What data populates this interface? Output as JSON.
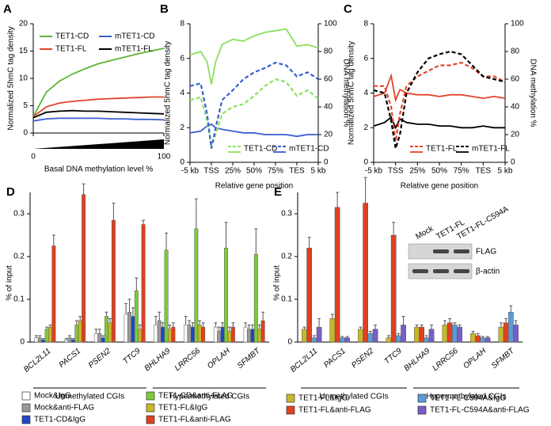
{
  "chart_data": [
    {
      "type": "line",
      "panel": "A",
      "xlabel": "Basal DNA methylation level %",
      "ylabel": "Normalized 5hmC tag density",
      "x": [
        0,
        10,
        20,
        30,
        40,
        50,
        60,
        70,
        80,
        90,
        100
      ],
      "xlim": [
        0,
        100
      ],
      "xticks": [
        0,
        100
      ],
      "ylim": [
        0,
        20
      ],
      "yticks": [
        0,
        5,
        10,
        15,
        20
      ],
      "series": [
        {
          "name": "TET1-CD",
          "color": "#5db535",
          "values": [
            3,
            7.5,
            9.5,
            10.8,
            11.8,
            12.7,
            13.3,
            13.9,
            14.5,
            15,
            15.5
          ]
        },
        {
          "name": "mTET1-CD",
          "color": "#3a5fd0",
          "values": [
            2.2,
            2.6,
            2.7,
            2.7,
            2.7,
            2.7,
            2.6,
            2.6,
            2.5,
            2.5,
            2.4
          ]
        },
        {
          "name": "TET1-FL",
          "color": "#e2442c",
          "values": [
            3,
            4.8,
            5.5,
            5.8,
            6,
            6.2,
            6.3,
            6.4,
            6.5,
            6.6,
            6.6
          ]
        },
        {
          "name": "mTET1-FL",
          "color": "#000000",
          "values": [
            2.8,
            3.8,
            4,
            4.1,
            4,
            4,
            3.9,
            3.8,
            3.7,
            3.6,
            3.5
          ]
        }
      ]
    },
    {
      "type": "line",
      "panel": "B",
      "xlabel": "Relative gene position",
      "ylabel": "Normalized 5hmC tag density",
      "y2label": "DNA methylation %",
      "x": [
        0,
        0.5,
        0.8,
        1,
        1.2,
        1.5,
        2,
        2.5,
        3,
        3.5,
        4,
        4.5,
        5,
        5.5,
        6
      ],
      "xlim": [
        0,
        6
      ],
      "xticks": [
        {
          "value": 0,
          "label": "-5 kb"
        },
        {
          "value": 1,
          "label": "TSS"
        },
        {
          "value": 2,
          "label": "25%"
        },
        {
          "value": 3,
          "label": "50%"
        },
        {
          "value": 4,
          "label": "75%"
        },
        {
          "value": 5,
          "label": "TES"
        },
        {
          "value": 6,
          "label": "5 kb"
        }
      ],
      "ylim": [
        0,
        8
      ],
      "yticks": [
        0,
        2,
        4,
        6,
        8
      ],
      "y2lim": [
        0,
        100
      ],
      "y2ticks": [
        0,
        20,
        40,
        60,
        80,
        100
      ],
      "series": [
        {
          "name": "TET1-CD",
          "color": "#8ae060",
          "values": [
            6.2,
            6.4,
            5.8,
            4.5,
            5.8,
            6.8,
            7.1,
            7,
            7.3,
            7.5,
            7.6,
            7.7,
            6.7,
            6.8,
            6.6
          ]
        },
        {
          "name": "mTET1-CD",
          "color": "#3a5fd0",
          "values": [
            1.7,
            1.8,
            2.1,
            2.2,
            2,
            1.9,
            1.8,
            1.7,
            1.7,
            1.6,
            1.6,
            1.6,
            1.5,
            1.6,
            1.6
          ]
        },
        {
          "color": "#8ae060",
          "dashed": true,
          "axis": "y2",
          "values": [
            45,
            47,
            30,
            12,
            20,
            35,
            40,
            42,
            48,
            55,
            60,
            58,
            48,
            52,
            46
          ]
        },
        {
          "color": "#3a5fd0",
          "dashed": true,
          "axis": "y2",
          "values": [
            55,
            57,
            35,
            10,
            25,
            45,
            52,
            60,
            65,
            68,
            72,
            70,
            62,
            65,
            60
          ]
        }
      ]
    },
    {
      "type": "line",
      "panel": "C",
      "xlabel": "Relative gene position",
      "ylabel": "Normalized 5hmC tag density",
      "y2label": "DNA methylation %",
      "x": [
        0,
        0.5,
        0.8,
        1,
        1.2,
        1.5,
        2,
        2.5,
        3,
        3.5,
        4,
        4.5,
        5,
        5.5,
        6
      ],
      "xlim": [
        0,
        6
      ],
      "xticks": [
        {
          "value": 0,
          "label": "-5 kb"
        },
        {
          "value": 1,
          "label": "TSS"
        },
        {
          "value": 2,
          "label": "25%"
        },
        {
          "value": 3,
          "label": "50%"
        },
        {
          "value": 4,
          "label": "75%"
        },
        {
          "value": 5,
          "label": "TES"
        },
        {
          "value": 6,
          "label": "5 kb"
        }
      ],
      "ylim": [
        0,
        8
      ],
      "yticks": [
        0,
        2,
        4,
        6,
        8
      ],
      "y2lim": [
        0,
        100
      ],
      "y2ticks": [
        0,
        20,
        40,
        60,
        80,
        100
      ],
      "series": [
        {
          "name": "TET1-FL",
          "color": "#e2442c",
          "values": [
            3.8,
            4,
            5,
            3.6,
            4.2,
            4,
            3.9,
            3.9,
            3.8,
            3.9,
            3.9,
            3.8,
            3.7,
            3.8,
            3.7
          ]
        },
        {
          "name": "mTET1-FL",
          "color": "#000000",
          "values": [
            2.1,
            2.3,
            2.6,
            2,
            2.5,
            2.3,
            2.2,
            2.2,
            2.1,
            2.1,
            2,
            2,
            2.1,
            2,
            2
          ]
        },
        {
          "color": "#e2442c",
          "dashed": true,
          "axis": "y2",
          "values": [
            55,
            55,
            40,
            15,
            35,
            55,
            62,
            66,
            70,
            70,
            72,
            68,
            62,
            62,
            58
          ]
        },
        {
          "color": "#000000",
          "dashed": true,
          "axis": "y2",
          "values": [
            52,
            50,
            30,
            10,
            20,
            50,
            65,
            75,
            78,
            80,
            78,
            70,
            62,
            60,
            58
          ]
        }
      ]
    },
    {
      "type": "bar",
      "panel": "D",
      "ylabel": "% of input",
      "ylim": [
        0,
        0.35
      ],
      "yticks": [
        0,
        0.1,
        0.2,
        0.3
      ],
      "categories": [
        "BCL2L11",
        "PACS1",
        "PSEN2",
        "TTC9",
        "BHLHA9",
        "LRRC56",
        "OPLAH",
        "SFMBT"
      ],
      "group_labels": [
        "Unmethylated CGIs",
        "Hypermethylated CGIs"
      ],
      "series": [
        {
          "name": "Mock&IgG",
          "color": "#ffffff",
          "values": [
            0.01,
            0.005,
            0.02,
            0.065,
            0.04,
            0.04,
            0.035,
            0.035
          ],
          "errors": [
            0.005,
            0.003,
            0.01,
            0.025,
            0.02,
            0.02,
            0.01,
            0.01
          ]
        },
        {
          "name": "Mock&anti-FLAG",
          "color": "#9a9a9a",
          "values": [
            0.01,
            0.01,
            0.02,
            0.07,
            0.05,
            0.04,
            0.025,
            0.03
          ],
          "errors": [
            0.005,
            0.005,
            0.01,
            0.03,
            0.02,
            0.01,
            0.01,
            0.01
          ]
        },
        {
          "name": "TET1-CD&IgG",
          "color": "#2046c8",
          "values": [
            0.005,
            0.005,
            0.01,
            0.06,
            0.035,
            0.035,
            0.035,
            0.03
          ],
          "errors": [
            0.003,
            0.003,
            0.005,
            0.02,
            0.01,
            0.01,
            0.01,
            0.01
          ]
        },
        {
          "name": "TET1-CD&anti-FLAG",
          "color": "#7ccc3a",
          "values": [
            0.03,
            0.04,
            0.06,
            0.12,
            0.215,
            0.265,
            0.22,
            0.205
          ],
          "errors": [
            0.005,
            0.01,
            0.01,
            0.03,
            0.04,
            0.07,
            0.06,
            0.06
          ]
        },
        {
          "name": "TET1-FL&IgG",
          "color": "#c8b828",
          "values": [
            0.035,
            0.05,
            0.045,
            0.03,
            0.03,
            0.04,
            0.025,
            0.03
          ],
          "errors": [
            0.005,
            0.01,
            0.01,
            0.01,
            0.01,
            0.01,
            0.01,
            0.01
          ]
        },
        {
          "name": "TET1-FL&anti-FLAG",
          "color": "#e04020",
          "values": [
            0.225,
            0.345,
            0.285,
            0.275,
            0.035,
            0.035,
            0.035,
            0.05
          ],
          "errors": [
            0.025,
            0.025,
            0.04,
            0.01,
            0.01,
            0.01,
            0.01,
            0.02
          ]
        }
      ]
    },
    {
      "type": "bar",
      "panel": "E",
      "ylabel": "% of input",
      "ylim": [
        0,
        0.35
      ],
      "yticks": [
        0,
        0.1,
        0.2,
        0.3
      ],
      "categories": [
        "BCL2L11",
        "PACS1",
        "PSEN2",
        "TTC9",
        "BHLHA9",
        "LRRC56",
        "OPLAH",
        "SFMBT"
      ],
      "group_labels": [
        "Unmethylated CGIs",
        "Hypermethylated CGIs"
      ],
      "inset": {
        "lanes": [
          "Mock",
          "TET1-FL",
          "TET1-FL-C594A"
        ],
        "bands": [
          "FLAG",
          "β-actin"
        ]
      },
      "series": [
        {
          "name": "TET1-FL&IgG",
          "color": "#c8b828",
          "values": [
            0.03,
            0.055,
            0.03,
            0.01,
            0.035,
            0.04,
            0.02,
            0.035
          ],
          "errors": [
            0.005,
            0.01,
            0.005,
            0.005,
            0.005,
            0.01,
            0.005,
            0.01
          ]
        },
        {
          "name": "TET1-FL&anti-FLAG",
          "color": "#e04020",
          "values": [
            0.22,
            0.315,
            0.325,
            0.25,
            0.035,
            0.045,
            0.015,
            0.045
          ],
          "errors": [
            0.025,
            0.035,
            0.06,
            0.03,
            0.005,
            0.01,
            0.005,
            0.01
          ]
        },
        {
          "name": "TET1-FL-C594A&IgG",
          "color": "#5b9bd5",
          "values": [
            0.01,
            0.01,
            0.02,
            0.015,
            0.01,
            0.04,
            0.01,
            0.07
          ],
          "errors": [
            0.005,
            0.003,
            0.005,
            0.005,
            0.005,
            0.005,
            0.003,
            0.015
          ]
        },
        {
          "name": "TET1-FL-C594A&anti-FLAG",
          "color": "#7a5cc8",
          "values": [
            0.035,
            0.01,
            0.03,
            0.04,
            0.03,
            0.035,
            0.01,
            0.04
          ],
          "errors": [
            0.02,
            0.003,
            0.01,
            0.02,
            0.01,
            0.005,
            0.003,
            0.01
          ]
        }
      ]
    }
  ]
}
